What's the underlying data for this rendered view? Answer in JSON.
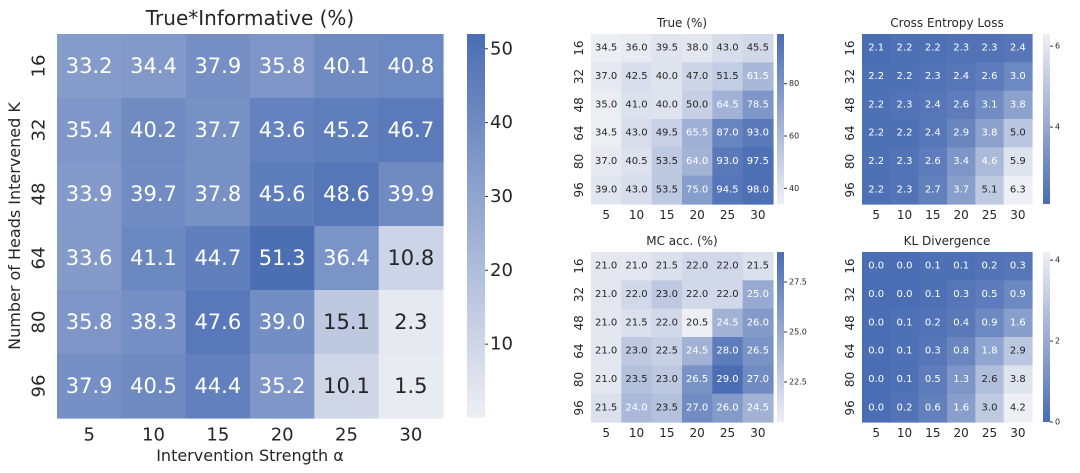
{
  "colors": {
    "low": "#eeeff4",
    "high": "#4a6db3",
    "text_dark": "#262626",
    "text_light": "#ffffff"
  },
  "chart_data": [
    {
      "id": "true-informative",
      "type": "heatmap",
      "title": "True*Informative (%)",
      "xlabel": "Intervention Strength α",
      "ylabel": "Number of Heads Intervened K",
      "x": [
        "5",
        "10",
        "15",
        "20",
        "25",
        "30"
      ],
      "y": [
        "16",
        "32",
        "48",
        "64",
        "80",
        "96"
      ],
      "values": [
        [
          33.2,
          34.4,
          37.9,
          35.8,
          40.1,
          40.8
        ],
        [
          35.4,
          40.2,
          37.7,
          43.6,
          45.2,
          46.7
        ],
        [
          33.9,
          39.7,
          37.8,
          45.6,
          48.6,
          39.9
        ],
        [
          33.6,
          41.1,
          44.7,
          51.3,
          36.4,
          10.8
        ],
        [
          35.8,
          38.3,
          47.6,
          39.0,
          15.1,
          2.3
        ],
        [
          37.9,
          40.5,
          44.4,
          35.2,
          10.1,
          1.5
        ]
      ],
      "vmin": 0,
      "vmax": 52,
      "colorbar_ticks": [
        10,
        20,
        30,
        40,
        50
      ],
      "colormap": "light-to-blue"
    },
    {
      "id": "true",
      "type": "heatmap",
      "title": "True (%)",
      "xlabel": "",
      "ylabel": "",
      "x": [
        "5",
        "10",
        "15",
        "20",
        "25",
        "30"
      ],
      "y": [
        "16",
        "32",
        "48",
        "64",
        "80",
        "96"
      ],
      "values": [
        [
          34.5,
          36.0,
          39.5,
          38.0,
          43.0,
          45.5
        ],
        [
          37.0,
          42.5,
          40.0,
          47.0,
          51.5,
          61.5
        ],
        [
          35.0,
          41.0,
          40.0,
          50.0,
          64.5,
          78.5
        ],
        [
          34.5,
          43.0,
          49.5,
          65.5,
          87.0,
          93.0
        ],
        [
          37.0,
          40.5,
          53.5,
          64.0,
          93.0,
          97.5
        ],
        [
          39.0,
          43.0,
          53.5,
          75.0,
          94.5,
          98.0
        ]
      ],
      "vmin": 34,
      "vmax": 99,
      "colorbar_ticks": [
        40,
        60,
        80
      ],
      "colormap": "light-to-blue"
    },
    {
      "id": "cross-entropy",
      "type": "heatmap",
      "title": "Cross Entropy Loss",
      "xlabel": "",
      "ylabel": "",
      "x": [
        "5",
        "10",
        "15",
        "20",
        "25",
        "30"
      ],
      "y": [
        "16",
        "32",
        "48",
        "64",
        "80",
        "96"
      ],
      "values": [
        [
          2.1,
          2.2,
          2.2,
          2.3,
          2.3,
          2.4
        ],
        [
          2.2,
          2.2,
          2.3,
          2.4,
          2.6,
          3.0
        ],
        [
          2.2,
          2.3,
          2.4,
          2.6,
          3.1,
          3.8
        ],
        [
          2.2,
          2.2,
          2.4,
          2.9,
          3.8,
          5.0
        ],
        [
          2.2,
          2.3,
          2.6,
          3.4,
          4.6,
          5.9
        ],
        [
          2.2,
          2.3,
          2.7,
          3.7,
          5.1,
          6.3
        ]
      ],
      "vmin": 2.1,
      "vmax": 6.3,
      "colorbar_ticks": [
        4,
        6
      ],
      "colormap": "blue-to-light"
    },
    {
      "id": "mc-acc",
      "type": "heatmap",
      "title": "MC acc. (%)",
      "xlabel": "",
      "ylabel": "",
      "x": [
        "5",
        "10",
        "15",
        "20",
        "25",
        "30"
      ],
      "y": [
        "16",
        "32",
        "48",
        "64",
        "80",
        "96"
      ],
      "values": [
        [
          21.0,
          21.0,
          21.5,
          22.0,
          22.0,
          21.5
        ],
        [
          21.0,
          22.0,
          23.0,
          22.0,
          22.0,
          25.0
        ],
        [
          21.0,
          21.5,
          22.0,
          20.5,
          24.5,
          26.0
        ],
        [
          21.0,
          23.0,
          22.5,
          24.5,
          28.0,
          26.5
        ],
        [
          21.0,
          23.5,
          23.0,
          26.5,
          29.0,
          27.0
        ],
        [
          21.5,
          24.0,
          23.5,
          27.0,
          26.0,
          24.5
        ]
      ],
      "vmin": 20.5,
      "vmax": 29.0,
      "colorbar_ticks": [
        22.5,
        25.0,
        27.5
      ],
      "colorbar_tick_labels": [
        "22.5",
        "25.0",
        "27.5"
      ],
      "colormap": "light-to-blue"
    },
    {
      "id": "kl-divergence",
      "type": "heatmap",
      "title": "KL Divergence",
      "xlabel": "",
      "ylabel": "",
      "x": [
        "5",
        "10",
        "15",
        "20",
        "25",
        "30"
      ],
      "y": [
        "16",
        "32",
        "48",
        "64",
        "80",
        "96"
      ],
      "values": [
        [
          0.0,
          0.0,
          0.1,
          0.1,
          0.2,
          0.3
        ],
        [
          0.0,
          0.0,
          0.1,
          0.3,
          0.5,
          0.9
        ],
        [
          0.0,
          0.1,
          0.2,
          0.4,
          0.9,
          1.6
        ],
        [
          0.0,
          0.1,
          0.3,
          0.8,
          1.8,
          2.9
        ],
        [
          0.0,
          0.1,
          0.5,
          1.3,
          2.6,
          3.8
        ],
        [
          0.0,
          0.2,
          0.6,
          1.6,
          3.0,
          4.2
        ]
      ],
      "vmin": 0,
      "vmax": 4.2,
      "colorbar_ticks": [
        0,
        2,
        4
      ],
      "colormap": "blue-to-light"
    }
  ]
}
